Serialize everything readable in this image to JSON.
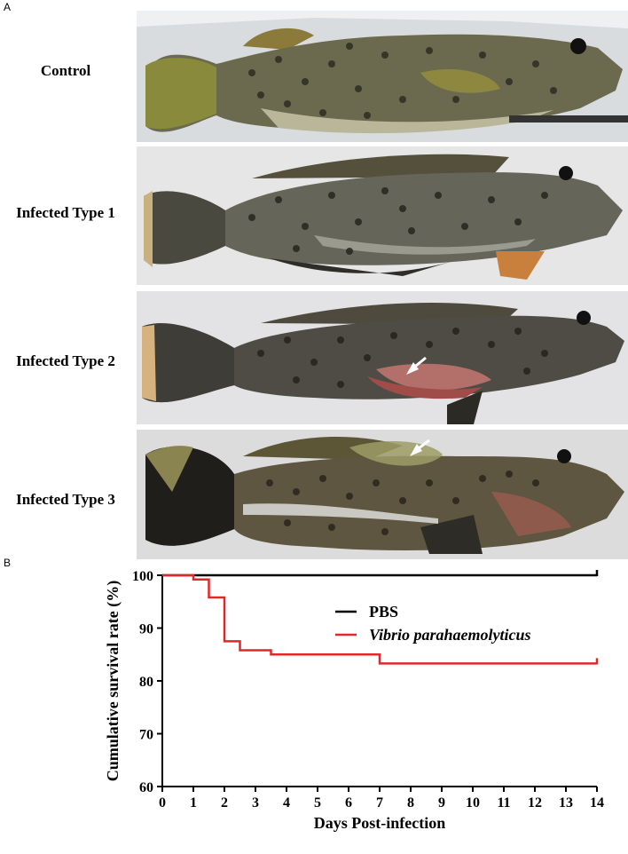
{
  "figure": {
    "panel_a_label": "A",
    "panel_b_label": "B",
    "photos": [
      {
        "label": "Control",
        "bg": "#d9dcdf",
        "lesion": "none"
      },
      {
        "label": "Infected Type 1",
        "bg": "#e6e6e6",
        "lesion": "none"
      },
      {
        "label": "Infected Type 2",
        "bg": "#e3e3e6",
        "lesion": "hemorrhage"
      },
      {
        "label": "Infected Type 3",
        "bg": "#dcdcdc",
        "lesion": "swelling"
      }
    ]
  },
  "chart_data": {
    "type": "line",
    "xlabel": "Days Post-infection",
    "ylabel": "Cumulative survival rate (%)",
    "xlim": [
      0,
      14
    ],
    "ylim": [
      60,
      100
    ],
    "xticks": [
      0,
      1,
      2,
      3,
      4,
      5,
      6,
      7,
      8,
      9,
      10,
      11,
      12,
      13,
      14
    ],
    "yticks": [
      60,
      70,
      80,
      90,
      100
    ],
    "legend_position": "top-right",
    "grid": false,
    "series": [
      {
        "name": "PBS",
        "color": "#000000",
        "italic": false,
        "x": [
          0,
          14
        ],
        "y": [
          100,
          100
        ]
      },
      {
        "name": "Vibrio parahaemolyticus",
        "color": "#e0282a",
        "italic": true,
        "x": [
          0,
          1,
          1.5,
          2,
          2.5,
          3.5,
          7,
          14
        ],
        "y": [
          100,
          99.2,
          95.8,
          87.5,
          85.8,
          85.0,
          83.3,
          83.3
        ]
      }
    ]
  }
}
